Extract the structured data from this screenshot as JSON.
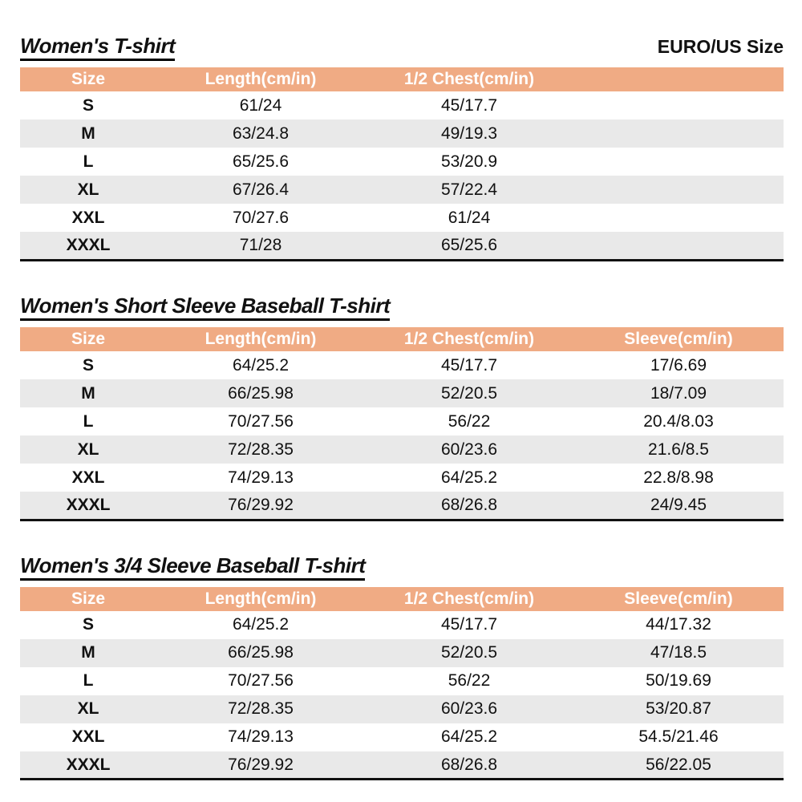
{
  "page": {
    "size_standard_label": "EURO/US Size"
  },
  "colors": {
    "header_bg": "#F0AB84",
    "header_text": "#FFFFFF",
    "stripe_bg": "#E9E9E9",
    "row_bg": "#FFFFFF",
    "text": "#111111",
    "table_border": "#111111"
  },
  "tables": [
    {
      "title": "Women's T-shirt",
      "columns": [
        "Size",
        "Length(cm/in)",
        "1/2 Chest(cm/in)",
        ""
      ],
      "rows": [
        [
          "S",
          "61/24",
          "45/17.7",
          ""
        ],
        [
          "M",
          "63/24.8",
          "49/19.3",
          ""
        ],
        [
          "L",
          "65/25.6",
          "53/20.9",
          ""
        ],
        [
          "XL",
          "67/26.4",
          "57/22.4",
          ""
        ],
        [
          "XXL",
          "70/27.6",
          "61/24",
          ""
        ],
        [
          "XXXL",
          "71/28",
          "65/25.6",
          ""
        ]
      ]
    },
    {
      "title": "Women's Short Sleeve Baseball T-shirt",
      "columns": [
        "Size",
        "Length(cm/in)",
        "1/2 Chest(cm/in)",
        "Sleeve(cm/in)"
      ],
      "rows": [
        [
          "S",
          "64/25.2",
          "45/17.7",
          "17/6.69"
        ],
        [
          "M",
          "66/25.98",
          "52/20.5",
          "18/7.09"
        ],
        [
          "L",
          "70/27.56",
          "56/22",
          "20.4/8.03"
        ],
        [
          "XL",
          "72/28.35",
          "60/23.6",
          "21.6/8.5"
        ],
        [
          "XXL",
          "74/29.13",
          "64/25.2",
          "22.8/8.98"
        ],
        [
          "XXXL",
          "76/29.92",
          "68/26.8",
          "24/9.45"
        ]
      ]
    },
    {
      "title": "Women's 3/4 Sleeve Baseball T-shirt",
      "columns": [
        "Size",
        "Length(cm/in)",
        "1/2 Chest(cm/in)",
        "Sleeve(cm/in)"
      ],
      "rows": [
        [
          "S",
          "64/25.2",
          "45/17.7",
          "44/17.32"
        ],
        [
          "M",
          "66/25.98",
          "52/20.5",
          "47/18.5"
        ],
        [
          "L",
          "70/27.56",
          "56/22",
          "50/19.69"
        ],
        [
          "XL",
          "72/28.35",
          "60/23.6",
          "53/20.87"
        ],
        [
          "XXL",
          "74/29.13",
          "64/25.2",
          "54.5/21.46"
        ],
        [
          "XXXL",
          "76/29.92",
          "68/26.8",
          "56/22.05"
        ]
      ]
    }
  ]
}
